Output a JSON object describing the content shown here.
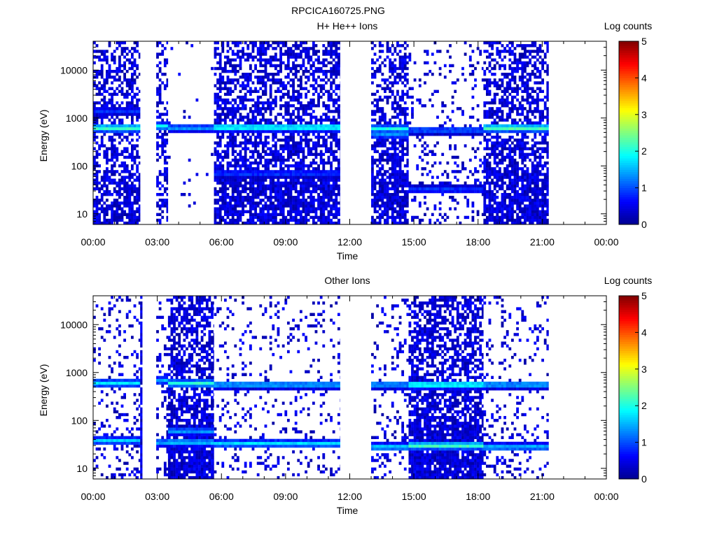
{
  "figure_title": "RPCICA160725.PNG",
  "colorbar": {
    "label": "Log counts",
    "ticks": [
      "0",
      "1",
      "2",
      "3",
      "4",
      "5"
    ],
    "range": [
      0,
      5
    ],
    "colormap": "jet",
    "colors": [
      "#00008f",
      "#0000ff",
      "#0080ff",
      "#00ffff",
      "#80ff80",
      "#ffff00",
      "#ff8000",
      "#ff0000",
      "#800000"
    ]
  },
  "chart_data": [
    {
      "type": "heatmap",
      "title": "H+ He++ Ions",
      "xlabel": "Time",
      "ylabel": "Energy (eV)",
      "xlim": [
        0,
        24
      ],
      "ylim": [
        6,
        40000
      ],
      "yscale": "log",
      "xticks": [
        "00:00",
        "03:00",
        "06:00",
        "09:00",
        "12:00",
        "15:00",
        "18:00",
        "21:00",
        "00:00"
      ],
      "yticks": [
        10,
        100,
        1000,
        10000
      ],
      "ytick_labels": [
        "10",
        "100",
        "1000",
        "10000"
      ],
      "intervals": [
        {
          "start": 0.0,
          "end": 2.2,
          "background": 0.55,
          "lines": [
            {
              "energy": 620,
              "level": 2.4
            },
            {
              "energy": 1400,
              "level": 0.9
            }
          ]
        },
        {
          "start": 2.95,
          "end": 3.5,
          "background": 0.45,
          "lines": [
            {
              "energy": 680,
              "level": 2.0
            }
          ]
        },
        {
          "start": 3.5,
          "end": 5.65,
          "background": 0.02,
          "lines": [
            {
              "energy": 620,
              "level": 1.5
            }
          ]
        },
        {
          "start": 5.65,
          "end": 11.55,
          "background": 0.65,
          "lines": [
            {
              "energy": 640,
              "level": 2.3
            },
            {
              "energy": 70,
              "level": 1.0
            }
          ]
        },
        {
          "start": 13.0,
          "end": 14.75,
          "background": 0.6,
          "lines": [
            {
              "energy": 600,
              "level": 2.0
            },
            {
              "energy": 450,
              "level": 1.4
            }
          ]
        },
        {
          "start": 14.75,
          "end": 18.25,
          "background": 0.15,
          "lines": [
            {
              "energy": 560,
              "level": 1.2
            },
            {
              "energy": 32,
              "level": 1.0
            }
          ]
        },
        {
          "start": 18.25,
          "end": 21.3,
          "background": 0.65,
          "lines": [
            {
              "energy": 620,
              "level": 2.5
            }
          ]
        }
      ]
    },
    {
      "type": "heatmap",
      "title": "Other Ions",
      "xlabel": "Time",
      "ylabel": "Energy (eV)",
      "xlim": [
        0,
        24
      ],
      "ylim": [
        6,
        40000
      ],
      "yscale": "log",
      "xticks": [
        "00:00",
        "03:00",
        "06:00",
        "09:00",
        "12:00",
        "15:00",
        "18:00",
        "21:00",
        "00:00"
      ],
      "yticks": [
        10,
        100,
        1000,
        10000
      ],
      "ytick_labels": [
        "10",
        "100",
        "1000",
        "10000"
      ],
      "intervals": [
        {
          "start": 0.0,
          "end": 2.2,
          "background": 0.15,
          "lines": [
            {
              "energy": 600,
              "level": 1.8
            },
            {
              "energy": 38,
              "level": 1.7
            }
          ]
        },
        {
          "start": 2.2,
          "end": 2.3,
          "background": 0.9,
          "lines": []
        },
        {
          "start": 2.95,
          "end": 3.5,
          "background": 0.2,
          "lines": [
            {
              "energy": 680,
              "level": 1.6
            },
            {
              "energy": 35,
              "level": 1.6
            }
          ]
        },
        {
          "start": 3.5,
          "end": 5.65,
          "background": 0.7,
          "lines": [
            {
              "energy": 600,
              "level": 2.1
            },
            {
              "energy": 60,
              "level": 1.5
            },
            {
              "energy": 35,
              "level": 1.8
            }
          ]
        },
        {
          "start": 5.65,
          "end": 11.55,
          "background": 0.12,
          "lines": [
            {
              "energy": 560,
              "level": 1.7
            },
            {
              "energy": 33,
              "level": 1.8
            }
          ]
        },
        {
          "start": 13.0,
          "end": 14.75,
          "background": 0.15,
          "lines": [
            {
              "energy": 560,
              "level": 1.6
            },
            {
              "energy": 28,
              "level": 1.8
            }
          ]
        },
        {
          "start": 14.75,
          "end": 18.25,
          "background": 0.7,
          "lines": [
            {
              "energy": 560,
              "level": 2.3
            },
            {
              "energy": 30,
              "level": 2.4
            }
          ]
        },
        {
          "start": 18.25,
          "end": 21.3,
          "background": 0.15,
          "lines": [
            {
              "energy": 560,
              "level": 1.7
            },
            {
              "energy": 28,
              "level": 1.7
            }
          ]
        }
      ]
    }
  ]
}
